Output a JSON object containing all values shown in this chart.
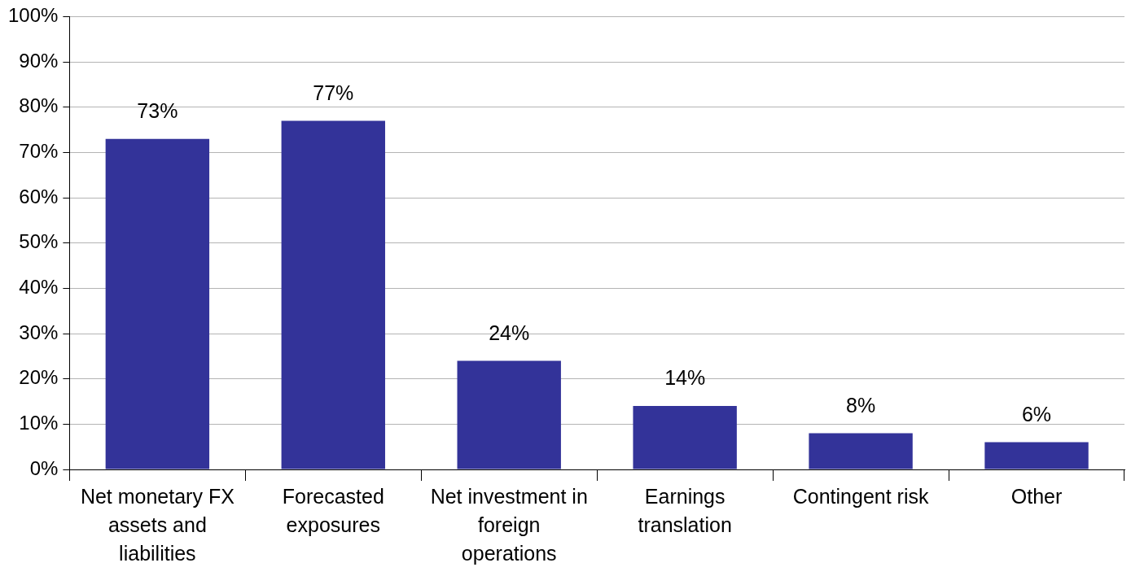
{
  "chart_data": {
    "type": "bar",
    "categories": [
      "Net monetary FX assets and liabilities",
      "Forecasted exposures",
      "Net investment in foreign operations",
      "Earnings translation",
      "Contingent risk",
      "Other"
    ],
    "values": [
      73,
      77,
      24,
      14,
      8,
      6
    ],
    "value_labels": [
      "73%",
      "77%",
      "24%",
      "14%",
      "8%",
      "6%"
    ],
    "color": "#333399",
    "ylim": [
      0,
      100
    ],
    "yticks": [
      {
        "value": 0,
        "label": "0%"
      },
      {
        "value": 10,
        "label": "10%"
      },
      {
        "value": 20,
        "label": "20%"
      },
      {
        "value": 30,
        "label": "30%"
      },
      {
        "value": 40,
        "label": "40%"
      },
      {
        "value": 50,
        "label": "50%"
      },
      {
        "value": 60,
        "label": "60%"
      },
      {
        "value": 70,
        "label": "70%"
      },
      {
        "value": 80,
        "label": "80%"
      },
      {
        "value": 90,
        "label": "90%"
      },
      {
        "value": 100,
        "label": "100%"
      }
    ],
    "grid": "y",
    "legend": false
  }
}
